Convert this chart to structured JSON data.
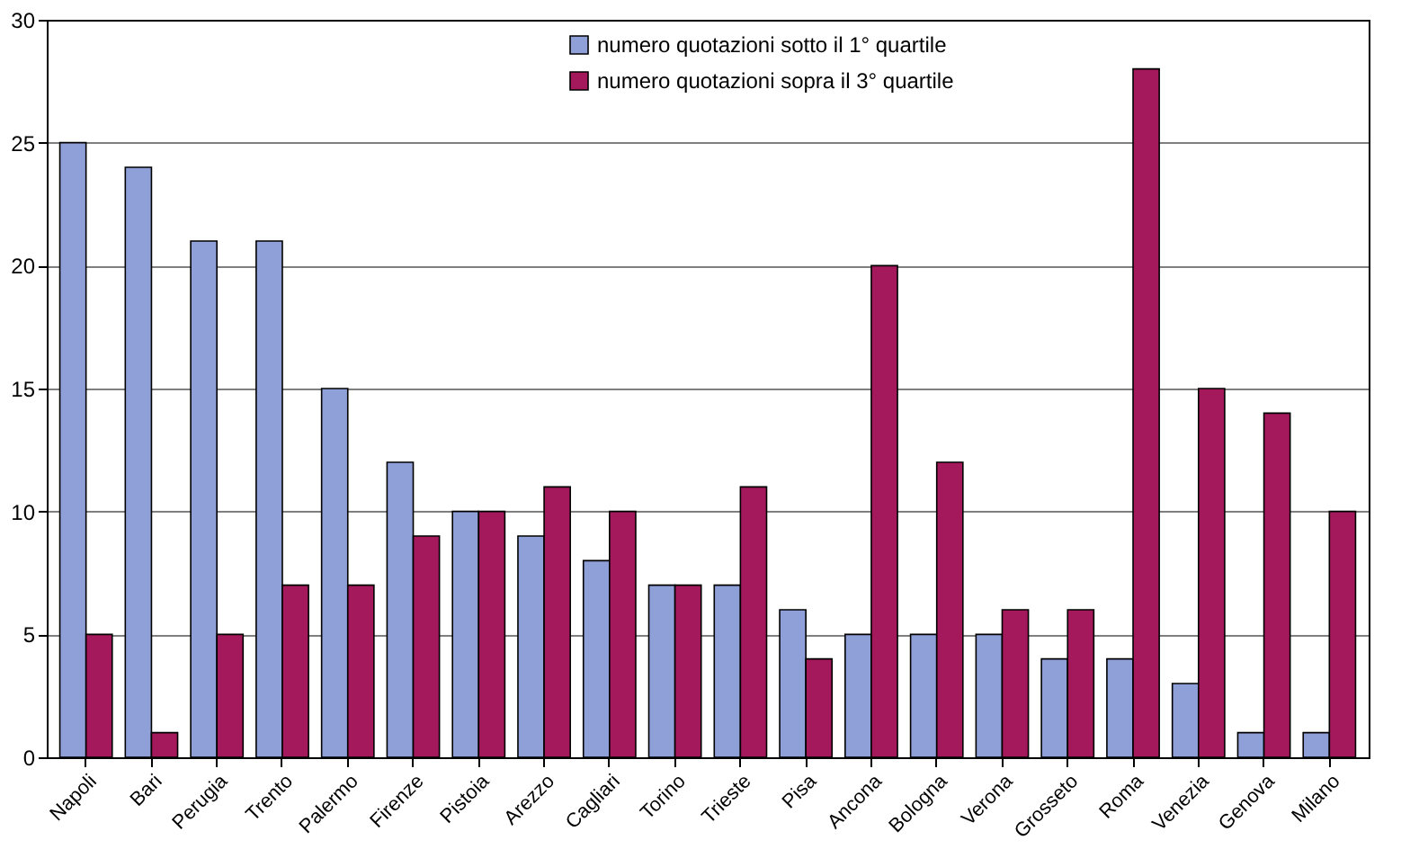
{
  "chart_data": {
    "type": "bar",
    "categories": [
      "Napoli",
      "Bari",
      "Perugia",
      "Trento",
      "Palermo",
      "Firenze",
      "Pistoia",
      "Arezzo",
      "Cagliari",
      "Torino",
      "Trieste",
      "Pisa",
      "Ancona",
      "Bologna",
      "Verona",
      "Grosseto",
      "Roma",
      "Venezia",
      "Genova",
      "Milano"
    ],
    "series": [
      {
        "name": "numero quotazioni sotto il 1° quartile",
        "color": "#8f9fd8",
        "values": [
          25,
          24,
          21,
          21,
          15,
          12,
          10,
          9,
          8,
          7,
          7,
          6,
          5,
          5,
          5,
          4,
          4,
          3,
          1,
          1
        ]
      },
      {
        "name": "numero quotazioni sopra il 3° quartile",
        "color": "#a3195b",
        "values": [
          5,
          1,
          5,
          7,
          7,
          9,
          10,
          11,
          10,
          7,
          11,
          4,
          20,
          12,
          6,
          6,
          28,
          15,
          14,
          10
        ]
      }
    ],
    "ylim": [
      0,
      30
    ],
    "yticks": [
      0,
      5,
      10,
      15,
      20,
      25,
      30
    ],
    "grid": "y",
    "legend": "top"
  }
}
